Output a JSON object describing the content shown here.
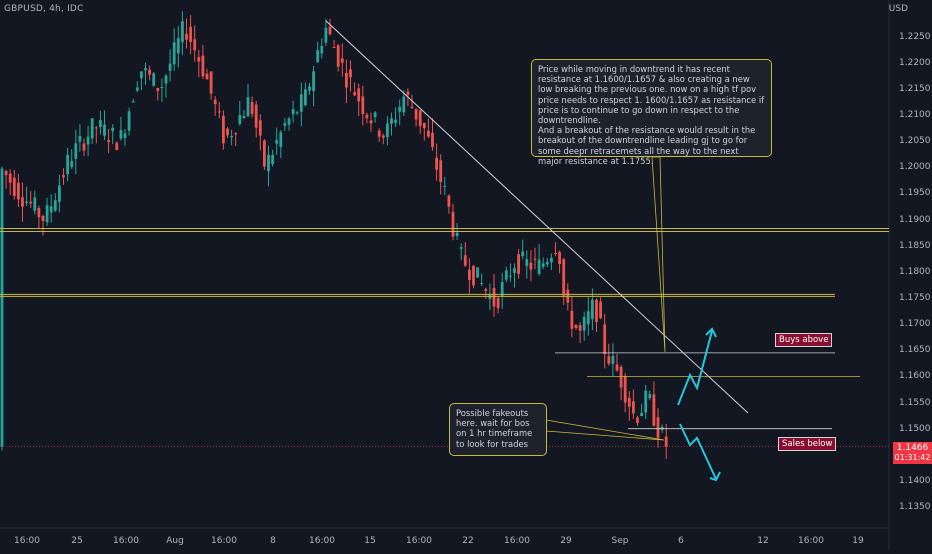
{
  "header": {
    "symbol": "GBPUSD, 4h, IDC",
    "currency": "USD"
  },
  "price_axis": {
    "ticks": [
      "1.2250",
      "1.2200",
      "1.2150",
      "1.2100",
      "1.2050",
      "1.2000",
      "1.1950",
      "1.1900",
      "1.1850",
      "1.1800",
      "1.1750",
      "1.1700",
      "1.1650",
      "1.1600",
      "1.1550",
      "1.1500",
      "1.1450",
      "1.1400",
      "1.1350"
    ],
    "current_price": "1.1466",
    "countdown": "01:31:42"
  },
  "time_axis": {
    "ticks": [
      "16:00",
      "25",
      "16:00",
      "Aug",
      "16:00",
      "8",
      "16:00",
      "15",
      "16:00",
      "22",
      "16:00",
      "29",
      "Sep",
      "6",
      "12",
      "16:00",
      "19"
    ]
  },
  "annotations": {
    "analysis_note": "Price while moving in downtrend it has recent resistance at 1.1600/1.1657 & also creating a new low breaking the previous one. now on a high tf pov price needs to respect 1. 1600/1.1657 as resistance if price is to continue to go down in respect to the downtrendline.\nAnd a breakout of the resistance would result in the breakout of the downtrendline leading gj to go for some deepr retracemets all the way to the next major resistance at 1.1755.",
    "fakeout_note": "Possible fakeouts here. wait for bos on 1 hr timeframe to look for trades",
    "buys_label": "Buys above",
    "sales_label": "Sales below"
  },
  "colors": {
    "background": "#131722",
    "bullish": "#26a69a",
    "bearish": "#ef5350",
    "level_line": "#c8b93b",
    "trendline": "#d1d4dc",
    "arrow": "#26c6da",
    "current_price_line": "#f23645"
  },
  "chart_data": {
    "type": "candlestick",
    "symbol": "GBPUSD",
    "timeframe": "4h",
    "ylim": [
      1.131,
      1.232
    ],
    "horizontal_levels": [
      1.188,
      1.1755,
      1.1645,
      1.16,
      1.15,
      1.1466
    ],
    "trendline": {
      "start_price": 1.228,
      "end_price": 1.153
    },
    "waypoints": [
      {
        "x": 0,
        "y": 1.2
      },
      {
        "x": 20,
        "y": 1.195
      },
      {
        "x": 45,
        "y": 1.19
      },
      {
        "x": 70,
        "y": 1.202
      },
      {
        "x": 95,
        "y": 1.208
      },
      {
        "x": 120,
        "y": 1.205
      },
      {
        "x": 140,
        "y": 1.219
      },
      {
        "x": 160,
        "y": 1.215
      },
      {
        "x": 185,
        "y": 1.227
      },
      {
        "x": 205,
        "y": 1.218
      },
      {
        "x": 225,
        "y": 1.205
      },
      {
        "x": 250,
        "y": 1.213
      },
      {
        "x": 265,
        "y": 1.2
      },
      {
        "x": 285,
        "y": 1.208
      },
      {
        "x": 305,
        "y": 1.213
      },
      {
        "x": 325,
        "y": 1.227
      },
      {
        "x": 345,
        "y": 1.218
      },
      {
        "x": 365,
        "y": 1.211
      },
      {
        "x": 385,
        "y": 1.206
      },
      {
        "x": 405,
        "y": 1.214
      },
      {
        "x": 425,
        "y": 1.207
      },
      {
        "x": 445,
        "y": 1.195
      },
      {
        "x": 460,
        "y": 1.183
      },
      {
        "x": 480,
        "y": 1.178
      },
      {
        "x": 495,
        "y": 1.174
      },
      {
        "x": 515,
        "y": 1.182
      },
      {
        "x": 540,
        "y": 1.181
      },
      {
        "x": 558,
        "y": 1.186
      },
      {
        "x": 565,
        "y": 1.173
      },
      {
        "x": 580,
        "y": 1.168
      },
      {
        "x": 595,
        "y": 1.174
      },
      {
        "x": 605,
        "y": 1.165
      },
      {
        "x": 620,
        "y": 1.16
      },
      {
        "x": 635,
        "y": 1.152
      },
      {
        "x": 648,
        "y": 1.156
      },
      {
        "x": 658,
        "y": 1.15
      },
      {
        "x": 667,
        "y": 1.1466
      }
    ]
  }
}
